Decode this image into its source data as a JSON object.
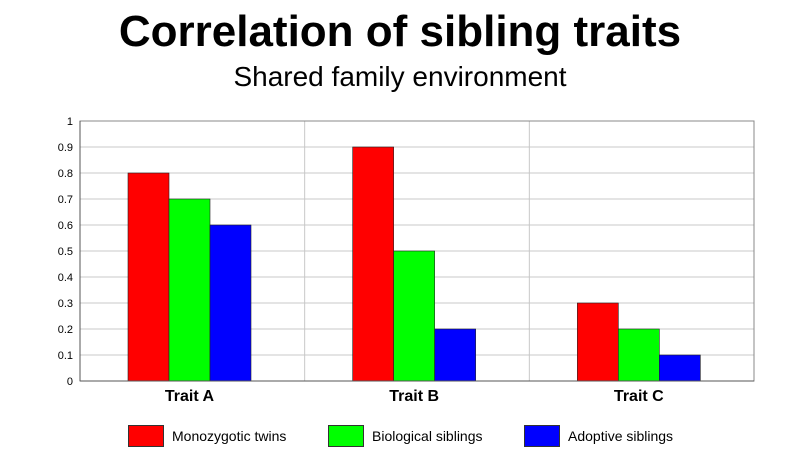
{
  "chart_data": {
    "type": "bar",
    "title": "Correlation of sibling traits",
    "subtitle": "Shared family environment",
    "xlabel": "",
    "ylabel": "",
    "categories": [
      "Trait A",
      "Trait B",
      "Trait C"
    ],
    "series": [
      {
        "name": "Monozygotic twins",
        "color": "#ff0000",
        "values": [
          0.8,
          0.9,
          0.3
        ]
      },
      {
        "name": "Biological siblings",
        "color": "#00ff00",
        "values": [
          0.7,
          0.5,
          0.2
        ]
      },
      {
        "name": "Adoptive siblings",
        "color": "#0000ff",
        "values": [
          0.6,
          0.2,
          0.1
        ]
      }
    ],
    "ylim": [
      0,
      1
    ],
    "yticks": [
      "0",
      "0.1",
      "0.2",
      "0.3",
      "0.4",
      "0.5",
      "0.6",
      "0.7",
      "0.8",
      "0.9",
      "1"
    ],
    "grid": true,
    "legend_position": "bottom"
  }
}
